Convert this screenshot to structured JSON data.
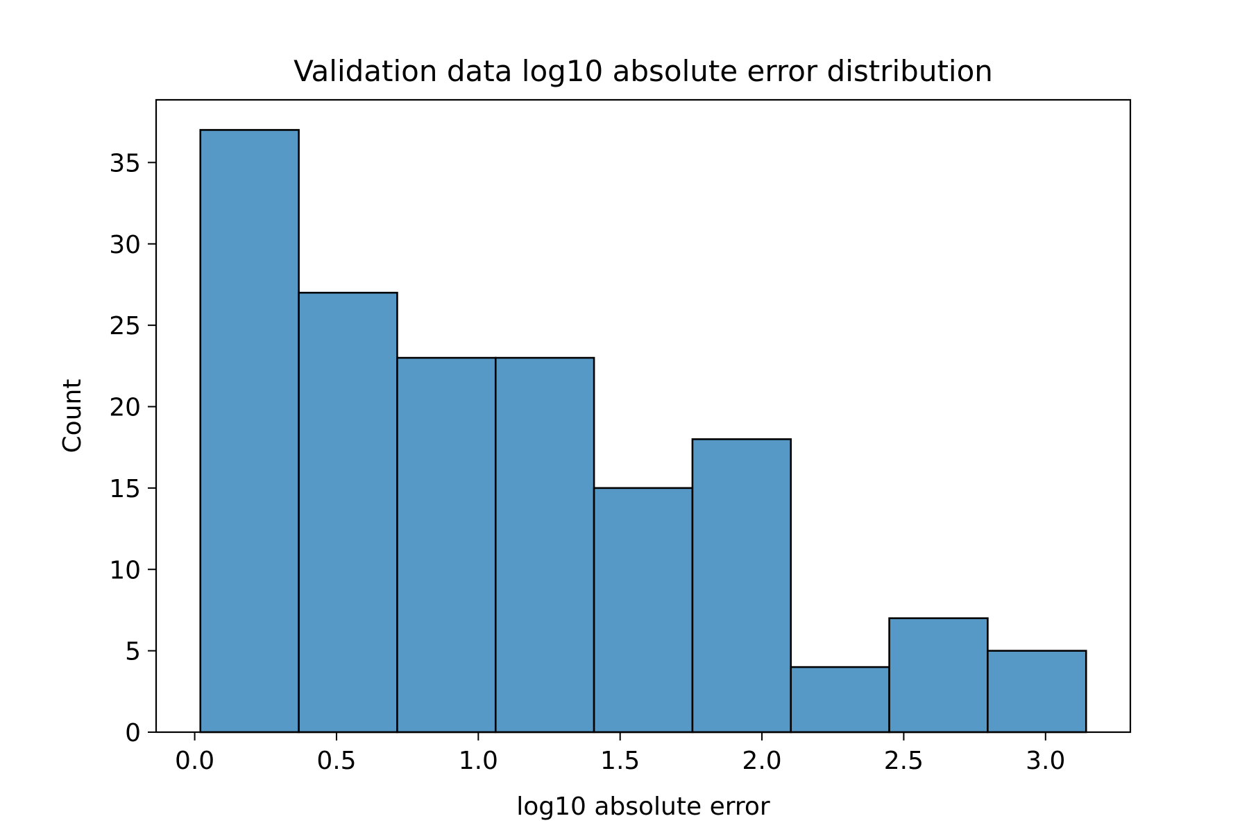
{
  "chart_data": {
    "type": "bar",
    "title": "Validation data log10 absolute error distribution",
    "xlabel": "log10 absolute error",
    "ylabel": "Count",
    "bins": [
      {
        "x0": 0.02,
        "x1": 0.367,
        "count": 37
      },
      {
        "x0": 0.367,
        "x1": 0.714,
        "count": 27
      },
      {
        "x0": 0.714,
        "x1": 1.061,
        "count": 23
      },
      {
        "x0": 1.061,
        "x1": 1.408,
        "count": 23
      },
      {
        "x0": 1.408,
        "x1": 1.755,
        "count": 15
      },
      {
        "x0": 1.755,
        "x1": 2.102,
        "count": 18
      },
      {
        "x0": 2.102,
        "x1": 2.449,
        "count": 4
      },
      {
        "x0": 2.449,
        "x1": 2.796,
        "count": 7
      },
      {
        "x0": 2.796,
        "x1": 3.143,
        "count": 5
      }
    ],
    "xlim": [
      -0.136,
      3.299
    ],
    "ylim": [
      0,
      38.85
    ],
    "xticks": [
      0.0,
      0.5,
      1.0,
      1.5,
      2.0,
      2.5,
      3.0
    ],
    "xtick_labels": [
      "0.0",
      "0.5",
      "1.0",
      "1.5",
      "2.0",
      "2.5",
      "3.0"
    ],
    "yticks": [
      0,
      5,
      10,
      15,
      20,
      25,
      30,
      35
    ],
    "ytick_labels": [
      "0",
      "5",
      "10",
      "15",
      "20",
      "25",
      "30",
      "35"
    ],
    "bar_color": "#5799c6",
    "edge_color": "#000000",
    "grid": false,
    "legend": "none"
  }
}
